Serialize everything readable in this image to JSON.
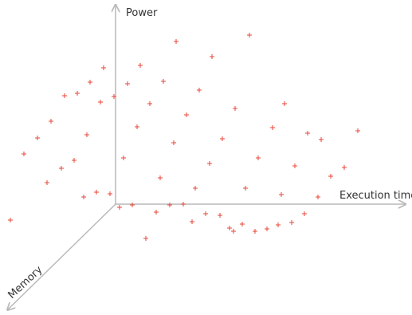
{
  "diagram": {
    "axes": {
      "power": "Power",
      "execution_time": "Execution time",
      "memory": "Memory"
    },
    "axis_color": "#b9b9b9",
    "label_color": "#333333",
    "marker": "plus",
    "marker_color": "#e8463a"
  }
}
